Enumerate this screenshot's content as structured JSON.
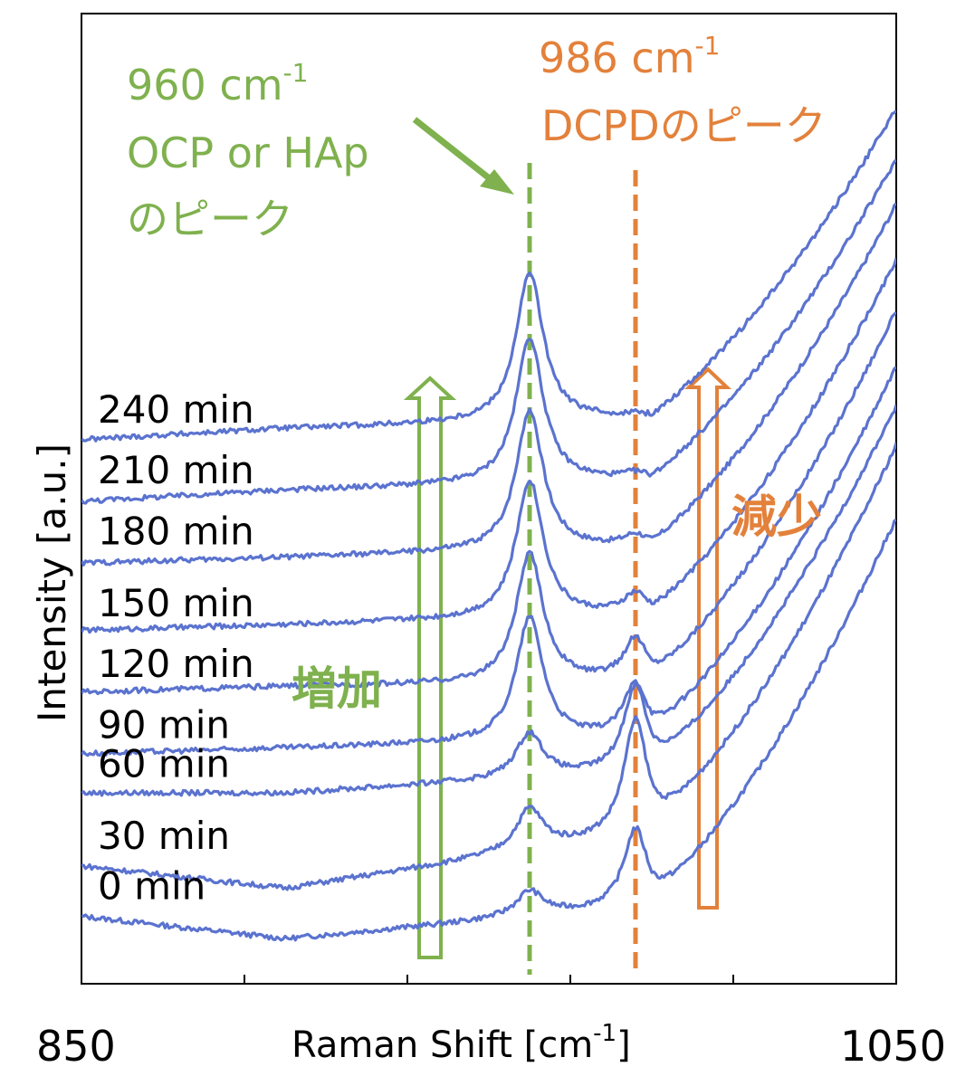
{
  "chart_data": {
    "type": "line",
    "title": "",
    "xlabel": "Raman Shift [cm",
    "xlabel_sup": "-1",
    "xlabel_tail": "]",
    "ylabel": "Intensity [a.u.]",
    "xlim": [
      850,
      1050
    ],
    "x_tick_labels": [
      "850",
      "1050"
    ],
    "x_ticks": [
      850,
      890,
      930,
      970,
      1010,
      1050
    ],
    "grid": false,
    "colors": {
      "series": "#5b73cf",
      "green": "#7fb14e",
      "orange": "#e3813b",
      "axis": "#000000"
    },
    "peak_markers": [
      {
        "x": 960,
        "color": "#7fb14e",
        "label_line1": "960 cm",
        "label_sup": "-1",
        "label_line2": "OCP or HAp",
        "label_line3": "のピーク"
      },
      {
        "x": 986,
        "color": "#e3813b",
        "label_line1": "986 cm",
        "label_sup": "-1",
        "label_line2": "DCPDのピーク"
      }
    ],
    "trend_arrows": [
      {
        "label": "増加",
        "color": "#7fb14e"
      },
      {
        "label": "減少",
        "color": "#e3813b"
      }
    ],
    "series": [
      {
        "name": "0 min",
        "baseline": [
          0.4,
          0.0,
          0.6,
          7.5
        ],
        "peaks": [
          {
            "x": 960,
            "h": 0.45,
            "w": 4.0
          },
          {
            "x": 986,
            "h": 1.4,
            "w": 3.5
          }
        ]
      },
      {
        "name": "30 min",
        "baseline": [
          1.3,
          0.9,
          1.9,
          8.8
        ],
        "peaks": [
          {
            "x": 960,
            "h": 0.75,
            "w": 4.0
          },
          {
            "x": 986,
            "h": 2.05,
            "w": 3.5
          }
        ]
      },
      {
        "name": "60 min",
        "baseline": [
          2.6,
          2.6,
          3.0,
          9.5
        ],
        "peaks": [
          {
            "x": 960,
            "h": 0.8,
            "w": 4.0
          },
          {
            "x": 986,
            "h": 1.55,
            "w": 3.5
          }
        ]
      },
      {
        "name": "90 min",
        "baseline": [
          3.3,
          3.4,
          3.6,
          10.2
        ],
        "peaks": [
          {
            "x": 960,
            "h": 2.2,
            "w": 4.0
          },
          {
            "x": 986,
            "h": 0.95,
            "w": 3.5
          }
        ]
      },
      {
        "name": "120 min",
        "baseline": [
          4.4,
          4.5,
          4.6,
          11.2
        ],
        "peaks": [
          {
            "x": 960,
            "h": 2.3,
            "w": 4.0
          },
          {
            "x": 986,
            "h": 0.75,
            "w": 3.5
          }
        ]
      },
      {
        "name": "150 min",
        "baseline": [
          5.5,
          5.6,
          5.8,
          12.1
        ],
        "peaks": [
          {
            "x": 960,
            "h": 2.45,
            "w": 4.0
          },
          {
            "x": 986,
            "h": 0.35,
            "w": 3.5
          }
        ]
      },
      {
        "name": "180 min",
        "baseline": [
          6.7,
          6.8,
          7.0,
          13.1
        ],
        "peaks": [
          {
            "x": 960,
            "h": 2.5,
            "w": 4.0
          },
          {
            "x": 986,
            "h": 0.2,
            "w": 3.5
          }
        ]
      },
      {
        "name": "210 min",
        "baseline": [
          7.8,
          8.0,
          8.2,
          13.9
        ],
        "peaks": [
          {
            "x": 960,
            "h": 2.6,
            "w": 4.0
          },
          {
            "x": 986,
            "h": 0.1,
            "w": 3.5
          }
        ]
      },
      {
        "name": "240 min",
        "baseline": [
          8.9,
          9.1,
          9.3,
          14.8
        ],
        "peaks": [
          {
            "x": 960,
            "h": 2.65,
            "w": 4.0
          },
          {
            "x": 986,
            "h": 0.05,
            "w": 3.5
          }
        ]
      }
    ]
  }
}
